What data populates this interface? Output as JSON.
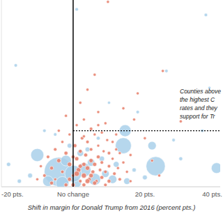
{
  "chart_data": {
    "type": "scatter",
    "x_label": "Shift in margin for Donald Trump from 2016 (percent pts.)",
    "annotation": [
      "Counties above",
      "the highest C",
      "rates and they",
      "support for Tr"
    ],
    "xlim": [
      -20,
      41
    ],
    "ylim": [
      0,
      100
    ],
    "xticks": [
      {
        "value": -20,
        "label": "-20 pts."
      },
      {
        "value": 0,
        "label": "No change"
      },
      {
        "value": 20,
        "label": "20 pts."
      },
      {
        "value": 40,
        "label": "40 pts."
      }
    ],
    "yticks": [],
    "tick_labels": "x",
    "grid": false,
    "reference_x": 0,
    "reference_y": 30,
    "series": [
      {
        "color": "#a9d0ea",
        "marker": "circle",
        "x": [
          -4,
          -10,
          14.5,
          14,
          22,
          23,
          40,
          -2,
          3,
          6,
          1,
          -7,
          9,
          2,
          5,
          -3,
          8,
          11,
          -1,
          0,
          4,
          12,
          7,
          -12,
          -15,
          20,
          17,
          30,
          36,
          1,
          37,
          26,
          -16,
          38,
          18,
          10,
          -8,
          28,
          -18,
          15,
          -5
        ],
        "values": [
          8,
          17,
          30,
          22,
          22,
          11,
          10,
          14,
          9,
          4,
          2,
          3,
          7,
          18,
          13,
          2,
          15,
          4,
          22,
          7,
          20,
          12,
          26,
          6,
          3,
          5,
          9,
          15,
          30,
          95,
          92,
          62,
          65,
          53,
          40,
          45,
          30,
          25,
          12,
          3,
          28
        ],
        "sizes": [
          300,
          60,
          50,
          90,
          25,
          130,
          40,
          40,
          70,
          50,
          30,
          40,
          20,
          15,
          20,
          60,
          10,
          25,
          8,
          100,
          8,
          12,
          5,
          8,
          6,
          8,
          6,
          5,
          4,
          4,
          4,
          4,
          4,
          3,
          4,
          3,
          4,
          4,
          6,
          15,
          4
        ]
      },
      {
        "color": "#e8836f",
        "marker": "circle",
        "x": [
          -8,
          -6,
          -5,
          -4,
          -3,
          -2,
          -1,
          0,
          0.5,
          1,
          1.5,
          2,
          2,
          2.5,
          3,
          3,
          3.5,
          4,
          4,
          4.5,
          5,
          5,
          5.5,
          6,
          6,
          6.5,
          7,
          7,
          7.5,
          8,
          8,
          8.5,
          9,
          9.5,
          10,
          10,
          11,
          11.5,
          12,
          12.5,
          13,
          14,
          15,
          16,
          -7,
          -9,
          -10,
          -6,
          -3,
          -1,
          1,
          3,
          5,
          7,
          2,
          4,
          9,
          -2,
          12,
          18,
          20,
          6,
          14,
          -4,
          0,
          3,
          6,
          9,
          -2,
          11,
          8,
          -5,
          1,
          4,
          13,
          0,
          2,
          5,
          -1,
          3,
          7,
          10,
          22,
          24,
          16,
          9.7,
          25,
          30,
          17
        ],
        "values": [
          6,
          10,
          4,
          14,
          8,
          18,
          12,
          6,
          22,
          15,
          9,
          3,
          19,
          26,
          12,
          6,
          17,
          10,
          24,
          4,
          14,
          20,
          8,
          28,
          12,
          3,
          16,
          22,
          9,
          5,
          13,
          19,
          8,
          25,
          11,
          3,
          15,
          7,
          20,
          10,
          4,
          13,
          8,
          17,
          16,
          11,
          4,
          2,
          24,
          28,
          33,
          36,
          31,
          40,
          45,
          52,
          34,
          38,
          28,
          50,
          26,
          60,
          42,
          30,
          1,
          1,
          2,
          1,
          1,
          24,
          29,
          20,
          7,
          3,
          18,
          16,
          11,
          6,
          4,
          27,
          33,
          18,
          14,
          6,
          3,
          99,
          62,
          35,
          36
        ],
        "sizes": [
          4,
          5,
          3,
          6,
          4,
          5,
          7,
          4,
          5,
          6,
          8,
          4,
          5,
          4,
          6,
          9,
          5,
          7,
          4,
          5,
          6,
          4,
          5,
          3,
          6,
          4,
          5,
          3,
          4,
          5,
          4,
          3,
          4,
          3,
          4,
          5,
          3,
          4,
          3,
          3,
          4,
          3,
          3,
          3,
          4,
          3,
          3,
          5,
          3,
          3,
          3,
          3,
          4,
          3,
          3,
          3,
          3,
          3,
          3,
          3,
          3,
          3,
          3,
          3,
          6,
          5,
          6,
          4,
          5,
          3,
          3,
          4,
          10,
          8,
          3,
          5,
          6,
          7,
          6,
          3,
          3,
          4,
          3,
          3,
          3,
          3,
          3,
          3,
          3
        ]
      }
    ]
  }
}
